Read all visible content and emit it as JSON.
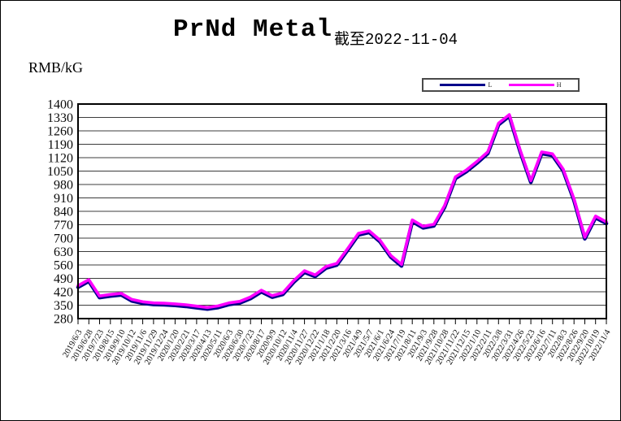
{
  "page": {
    "title": "PrNd Metal",
    "asof": "截至2022-11-04",
    "unit": "RMB/kG"
  },
  "legend": {
    "items": [
      {
        "label": "L",
        "color": "#00008B"
      },
      {
        "label": "H",
        "color": "#FF00FF"
      }
    ]
  },
  "chart_data": {
    "type": "line",
    "title": "PrNd Metal",
    "subtitle": "截至2022-11-04",
    "ylabel": "RMB/kG",
    "ylim": [
      280,
      1400
    ],
    "ytick_step": 70,
    "yticks": [
      1400,
      1330,
      1260,
      1190,
      1120,
      1050,
      980,
      910,
      840,
      770,
      700,
      630,
      560,
      490,
      420,
      350,
      280
    ],
    "grid": "horizontal",
    "legend_position": "top-right-outside",
    "categories": [
      "2019/6/3",
      "2019/6/28",
      "2019/7/23",
      "2019/8/15",
      "2019/9/10",
      "2019/10/12",
      "2019/11/6",
      "2019/11/29",
      "2019/12/24",
      "2020/1/20",
      "2020/2/21",
      "2020/3/17",
      "2020/4/13",
      "2020/5/11",
      "2020/6/3",
      "2020/6/30",
      "2020/7/23",
      "2020/8/17",
      "2020/9/9",
      "2020/10/12",
      "2020/11/4",
      "2020/11/27",
      "2020/12/22",
      "2021/1/18",
      "2021/2/20",
      "2021/3/16",
      "2021/4/9",
      "2021/5/7",
      "2021/6/1",
      "2021/6/24",
      "2021/7/19",
      "2021/8/11",
      "2021/9/3",
      "2021/9/28",
      "2021/10/28",
      "2021/11/22",
      "2021/12/15",
      "2022/1/10",
      "2022/2/11",
      "2022/3/8",
      "2022/3/31",
      "2022/4/26",
      "2022/5/23",
      "2022/6/16",
      "2022/7/11",
      "2022/8/3",
      "2022/8/26",
      "2022/9/20",
      "2022/10/19",
      "2022/11/4"
    ],
    "series": [
      {
        "name": "L",
        "color": "#00008B",
        "values": [
          444,
          475,
          390,
          398,
          404,
          372,
          360,
          354,
          352,
          349,
          344,
          337,
          330,
          338,
          354,
          362,
          385,
          420,
          392,
          407,
          470,
          522,
          500,
          544,
          560,
          637,
          717,
          730,
          682,
          602,
          555,
          787,
          754,
          764,
          862,
          1012,
          1047,
          1092,
          1142,
          1292,
          1337,
          1152,
          992,
          1142,
          1132,
          1052,
          897,
          697,
          807,
          777
        ]
      },
      {
        "name": "H",
        "color": "#FF00FF",
        "values": [
          452,
          483,
          398,
          406,
          412,
          380,
          368,
          362,
          360,
          357,
          352,
          345,
          338,
          346,
          362,
          370,
          393,
          428,
          400,
          415,
          478,
          530,
          508,
          552,
          568,
          645,
          725,
          738,
          690,
          610,
          563,
          795,
          762,
          772,
          870,
          1020,
          1055,
          1100,
          1150,
          1300,
          1345,
          1160,
          1000,
          1150,
          1140,
          1060,
          905,
          705,
          815,
          785
        ]
      }
    ]
  }
}
